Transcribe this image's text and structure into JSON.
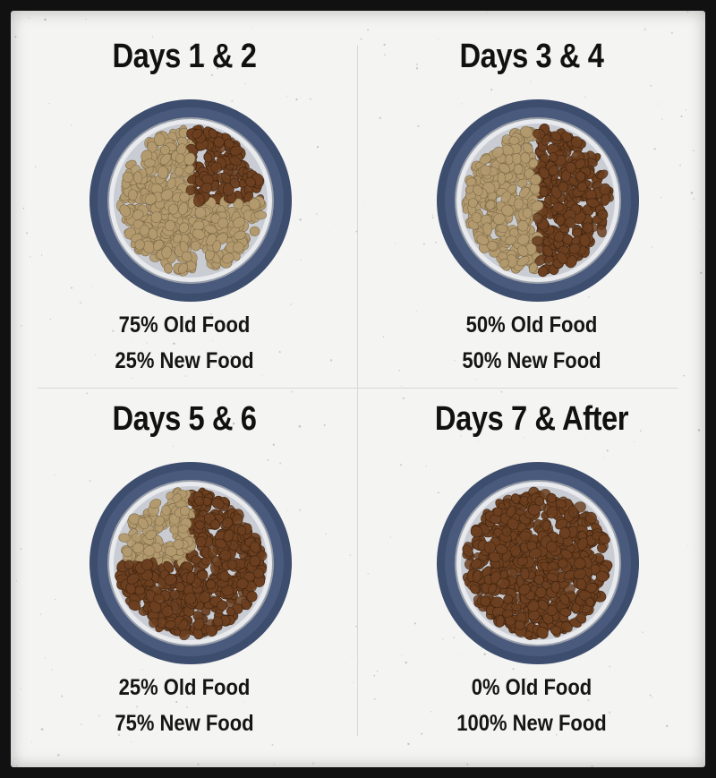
{
  "panels": [
    {
      "title": "Days 1 & 2",
      "old_label": "75% Old Food",
      "new_label": "25% New Food",
      "old_fraction": 0.75,
      "new_fraction": 0.25
    },
    {
      "title": "Days 3 & 4",
      "old_label": "50% Old Food",
      "new_label": "50% New Food",
      "old_fraction": 0.5,
      "new_fraction": 0.5
    },
    {
      "title": "Days 5 & 6",
      "old_label": "25% Old Food",
      "new_label": "75% New Food",
      "old_fraction": 0.25,
      "new_fraction": 0.75
    },
    {
      "title": "Days 7 & After",
      "old_label": "0% Old Food",
      "new_label": "100% New Food",
      "old_fraction": 0.0,
      "new_fraction": 1.0
    }
  ],
  "colors": {
    "background": "#f4f4f2",
    "frame": "#111111",
    "bowl_rim": "#3d4d6e",
    "bowl_inner": "#c9ccd2",
    "old_food": "#b39a6e",
    "new_food": "#6b3f1f"
  }
}
